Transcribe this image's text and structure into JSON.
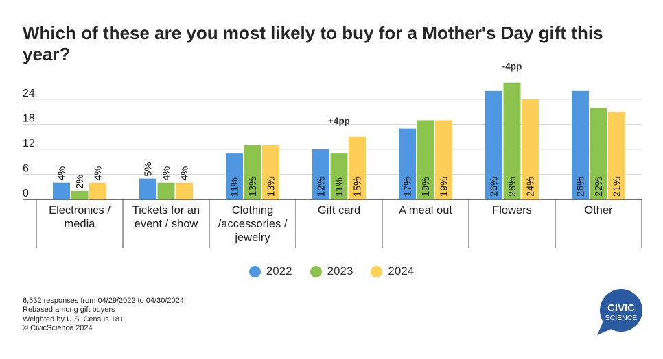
{
  "title": "Which of these are you most likely to buy for a Mother's Day gift this year?",
  "chart_data": {
    "type": "bar",
    "title": "Which of these are you most likely to buy for a Mother's Day gift this year?",
    "categories": [
      [
        "Electronics /",
        "media"
      ],
      [
        "Tickets for an",
        "event / show"
      ],
      [
        "Clothing",
        "/accessories /",
        "jewelry"
      ],
      [
        "Gift card"
      ],
      [
        "A meal out"
      ],
      [
        "Flowers"
      ],
      [
        "Other"
      ]
    ],
    "series": [
      {
        "name": "2022",
        "color": "#4f97e0",
        "values": [
          4,
          5,
          11,
          12,
          17,
          26,
          26
        ]
      },
      {
        "name": "2023",
        "color": "#8cc34c",
        "values": [
          2,
          4,
          13,
          11,
          19,
          28,
          22
        ]
      },
      {
        "name": "2024",
        "color": "#fdcf56",
        "values": [
          4,
          4,
          13,
          15,
          19,
          24,
          21
        ]
      }
    ],
    "yticks": [
      0,
      6,
      12,
      18,
      24
    ],
    "ylim": [
      0,
      30
    ],
    "grid": true,
    "legend_position": "bottom",
    "annotations": [
      {
        "category_index": 3,
        "text": "+4pp"
      },
      {
        "category_index": 5,
        "text": "-4pp"
      }
    ]
  },
  "footnotes": [
    "6,532 responses from 04/29/2022 to 04/30/2024",
    "Rebased among gift buyers",
    "Weighted by U.S. Census 18+",
    "© CivicScience 2024"
  ],
  "logo": {
    "line1": "CIVIC",
    "line2": "SCIENCE",
    "color": "#2a5aa0"
  }
}
